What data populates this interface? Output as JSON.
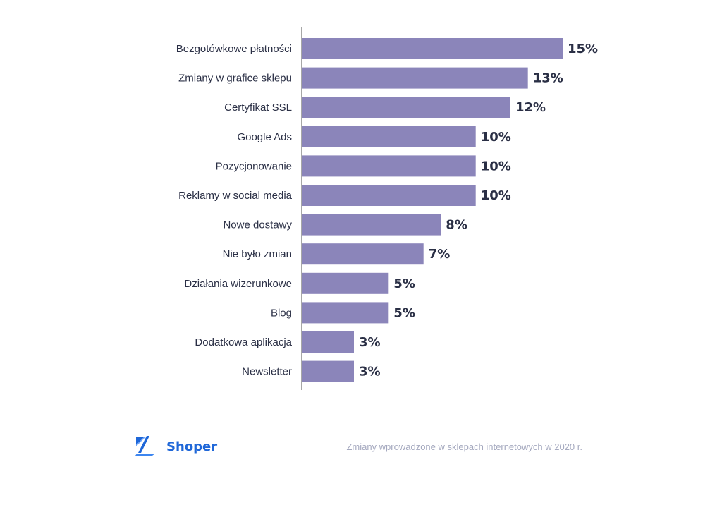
{
  "chart_data": {
    "type": "bar",
    "orientation": "horizontal",
    "categories": [
      "Bezgotówkowe płatności",
      "Zmiany w grafice sklepu",
      "Certyfikat SSL",
      "Google Ads",
      "Pozycjonowanie",
      "Reklamy w social media",
      "Nowe dostawy",
      "Nie było zmian",
      "Działania wizerunkowe",
      "Blog",
      "Dodatkowa aplikacja",
      "Newsletter"
    ],
    "values": [
      15,
      13,
      12,
      10,
      10,
      10,
      8,
      7,
      5,
      5,
      3,
      3
    ],
    "value_labels": [
      "15%",
      "13%",
      "12%",
      "10%",
      "10%",
      "10%",
      "8%",
      "7%",
      "5%",
      "5%",
      "3%",
      "3%"
    ],
    "unit": "%",
    "xlim": [
      0,
      15
    ],
    "grid": false,
    "bar_color": "#8b85ba",
    "axis_color": "#8a8a8a",
    "label_color": "#2a2f45"
  },
  "footer": {
    "brand": "Shoper",
    "brand_color": "#1f67d8",
    "logo_icon": "shoper-logo-icon",
    "caption": "Zmiany wprowadzone w sklepach internetowych w 2020 r."
  }
}
